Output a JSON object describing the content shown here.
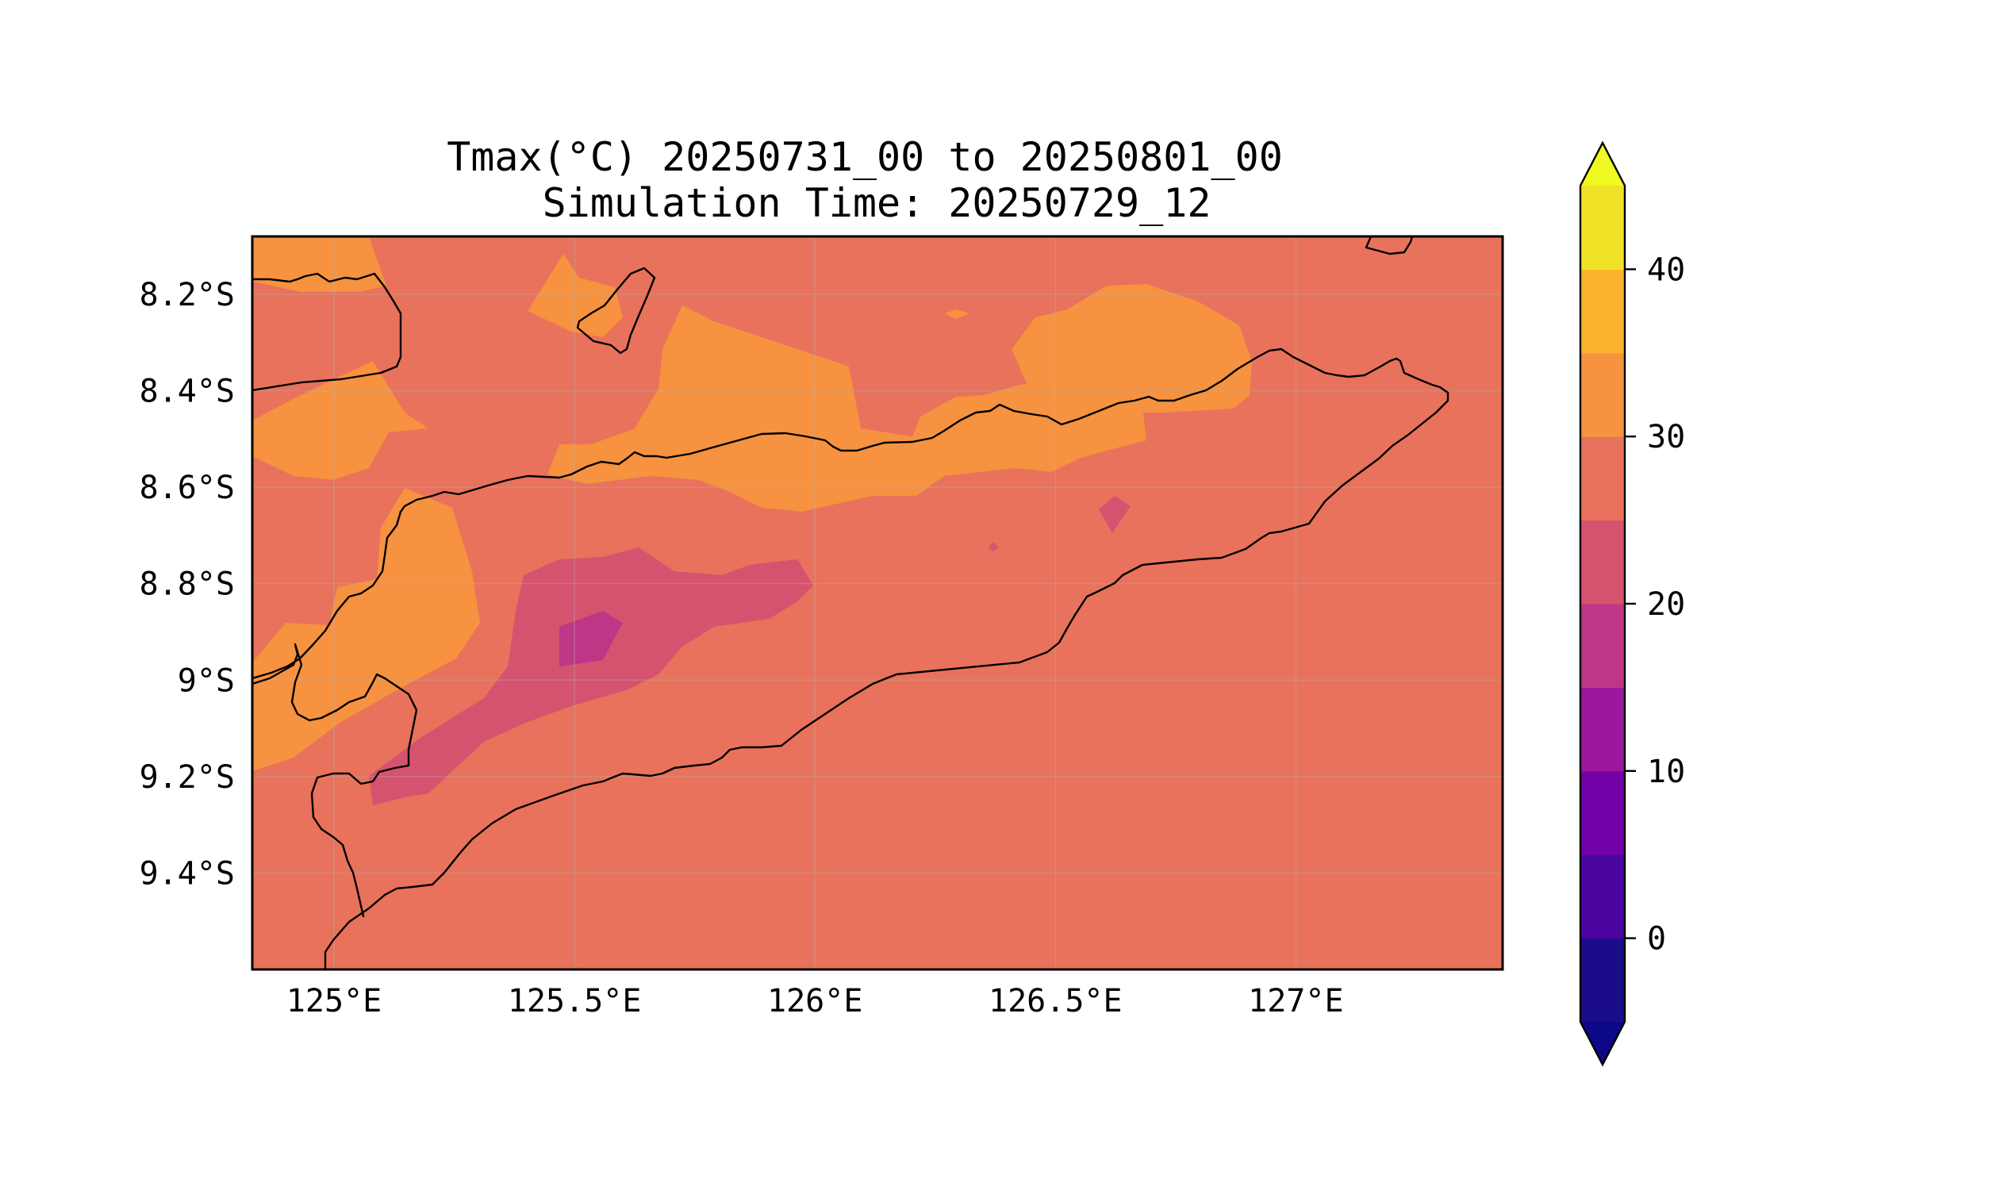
{
  "figure": {
    "title_line1": "Tmax(°C) 20250731_00 to 20250801_00",
    "title_line2": "Simulation Time: 20250729_12"
  },
  "map": {
    "variable": "Tmax",
    "units": "°C",
    "lon_range": [
      124.83,
      127.43
    ],
    "lat_range": [
      -9.6,
      -8.08
    ],
    "x_ticks": [
      {
        "value": 125.0,
        "label": "125°E"
      },
      {
        "value": 125.5,
        "label": "125.5°E"
      },
      {
        "value": 126.0,
        "label": "126°E"
      },
      {
        "value": 126.5,
        "label": "126.5°E"
      },
      {
        "value": 127.0,
        "label": "127°E"
      }
    ],
    "y_ticks": [
      {
        "value": -8.2,
        "label": "8.2°S"
      },
      {
        "value": -8.4,
        "label": "8.4°S"
      },
      {
        "value": -8.6,
        "label": "8.6°S"
      },
      {
        "value": -8.8,
        "label": "8.8°S"
      },
      {
        "value": -9.0,
        "label": "9°S"
      },
      {
        "value": -9.2,
        "label": "9.2°S"
      },
      {
        "value": -9.4,
        "label": "9.4°S"
      }
    ],
    "gridlines": true,
    "coastlines": true,
    "dominant_range": "25–30"
  },
  "colorbar": {
    "placement": "right",
    "range": [
      -5,
      45
    ],
    "extend": "both",
    "levels": [
      {
        "min": -5,
        "max": 0,
        "color": "#1b0c8a"
      },
      {
        "min": 0,
        "max": 5,
        "color": "#4a05a1"
      },
      {
        "min": 5,
        "max": 10,
        "color": "#7301a8"
      },
      {
        "min": 10,
        "max": 15,
        "color": "#9c179e"
      },
      {
        "min": 15,
        "max": 20,
        "color": "#bd3786"
      },
      {
        "min": 20,
        "max": 25,
        "color": "#d5536f"
      },
      {
        "min": 25,
        "max": 30,
        "color": "#e8725b"
      },
      {
        "min": 30,
        "max": 35,
        "color": "#f69240"
      },
      {
        "min": 35,
        "max": 40,
        "color": "#fdb32f"
      },
      {
        "min": 40,
        "max": 45,
        "color": "#f0e226"
      }
    ],
    "under_color": "#0d0887",
    "over_color": "#f0f921",
    "ticks": [
      {
        "value": 0,
        "label": "0"
      },
      {
        "value": 10,
        "label": "10"
      },
      {
        "value": 20,
        "label": "20"
      },
      {
        "value": 30,
        "label": "30"
      },
      {
        "value": 40,
        "label": "40"
      }
    ]
  }
}
